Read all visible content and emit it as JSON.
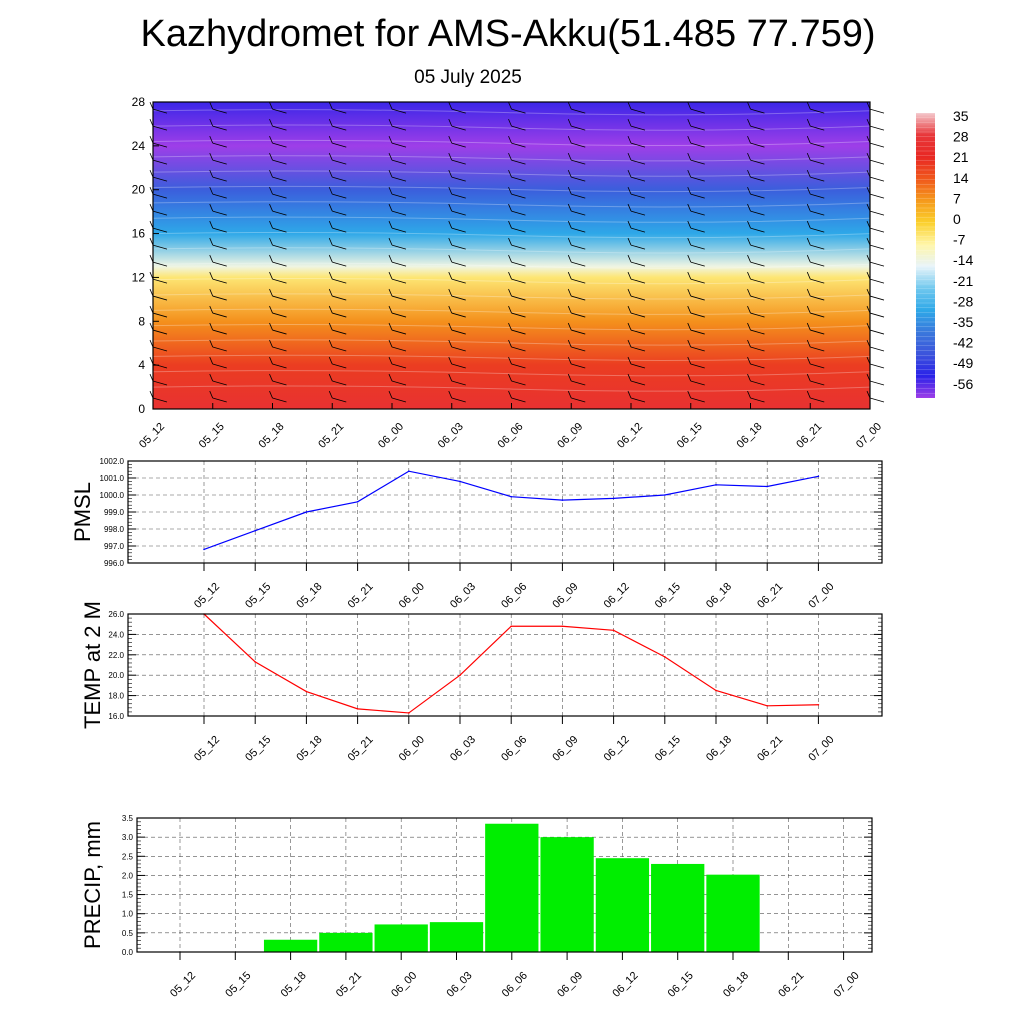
{
  "title": "Kazhydromet for AMS-Akku(51.485 77.759)",
  "subtitle": "05 July 2025",
  "time_labels": [
    "05_12",
    "05_15",
    "05_18",
    "05_21",
    "06_00",
    "06_03",
    "06_06",
    "06_09",
    "06_12",
    "06_15",
    "06_18",
    "06_21",
    "07_00"
  ],
  "chart_data": [
    {
      "type": "heatmap",
      "name": "temperature-wind-cross-section",
      "x": [
        "05_12",
        "05_15",
        "05_18",
        "05_21",
        "06_00",
        "06_03",
        "06_06",
        "06_09",
        "06_12",
        "06_15",
        "06_18",
        "06_21",
        "07_00"
      ],
      "y_ticks": [
        0,
        4,
        8,
        12,
        16,
        20,
        24,
        28
      ],
      "ylim": [
        0,
        28
      ],
      "colorbar_labels": [
        "35",
        "28",
        "21",
        "14",
        "7",
        "0",
        "-7",
        "-14",
        "-21",
        "-28",
        "-35",
        "-42",
        "-49",
        "-56"
      ],
      "colorbar_colors": [
        "#f4c8cc",
        "#e8373a",
        "#e82824",
        "#f0581c",
        "#f59a1c",
        "#fbd02c",
        "#fff6a8",
        "#e8f4fa",
        "#70c8ee",
        "#2ea8e8",
        "#3a78dc",
        "#3c54dc",
        "#2a22e8",
        "#9e3ee8"
      ],
      "profile_by_height": [
        {
          "height": 0,
          "value": 25
        },
        {
          "height": 4,
          "value": 18
        },
        {
          "height": 8,
          "value": 8
        },
        {
          "height": 12,
          "value": -4
        },
        {
          "height": 13,
          "value": -12
        },
        {
          "height": 16,
          "value": -28
        },
        {
          "height": 20,
          "value": -40
        },
        {
          "height": 24,
          "value": -56
        },
        {
          "height": 28,
          "value": -50
        }
      ]
    },
    {
      "type": "line",
      "name": "pmsl",
      "ylabel": "PMSL",
      "x": [
        "05_12",
        "05_15",
        "05_18",
        "05_21",
        "06_00",
        "06_03",
        "06_06",
        "06_09",
        "06_12",
        "06_15",
        "06_18",
        "06_21",
        "07_00"
      ],
      "values": [
        996.8,
        997.9,
        999.0,
        999.6,
        1001.4,
        1000.8,
        999.9,
        999.7,
        999.8,
        1000.0,
        1000.6,
        1000.5,
        1001.1
      ],
      "ylim": [
        996.0,
        1002.0
      ],
      "y_ticks": [
        "996.0",
        "997.0",
        "998.0",
        "999.0",
        "1000.0",
        "1001.0",
        "1002.0"
      ],
      "color": "#0000ff"
    },
    {
      "type": "line",
      "name": "temp-2m",
      "ylabel": "TEMP at 2 M",
      "x": [
        "05_12",
        "05_15",
        "05_18",
        "05_21",
        "06_00",
        "06_03",
        "06_06",
        "06_09",
        "06_12",
        "06_15",
        "06_18",
        "06_21",
        "07_00"
      ],
      "values": [
        26.0,
        21.3,
        18.4,
        16.7,
        16.3,
        20.0,
        24.8,
        24.8,
        24.4,
        21.8,
        18.5,
        17.0,
        17.1
      ],
      "ylim": [
        16.0,
        26.0
      ],
      "y_ticks": [
        "16.0",
        "18.0",
        "20.0",
        "22.0",
        "24.0",
        "26.0"
      ],
      "color": "#ff0000"
    },
    {
      "type": "bar",
      "name": "precip",
      "ylabel": "PRECIP, mm",
      "categories": [
        "05_12",
        "05_15",
        "05_18",
        "05_21",
        "06_00",
        "06_03",
        "06_06",
        "06_09",
        "06_12",
        "06_15",
        "06_18",
        "06_21",
        "07_00"
      ],
      "values": [
        0,
        0,
        0.32,
        0.5,
        0.72,
        0.78,
        3.35,
        3.0,
        2.45,
        2.3,
        2.02,
        0,
        0
      ],
      "ylim": [
        0,
        3.5
      ],
      "y_ticks": [
        "0.0",
        "0.5",
        "1.0",
        "1.5",
        "2.0",
        "2.5",
        "3.0",
        "3.5"
      ],
      "color": "#00ee00"
    }
  ]
}
